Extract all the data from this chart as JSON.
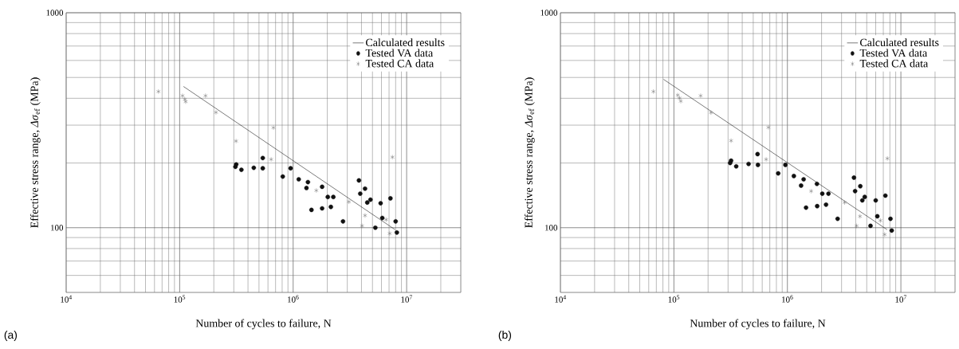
{
  "chart_data": [
    {
      "type": "scatter",
      "annotations": [
        "(a)"
      ],
      "xlabel": "Number of cycles to failure, N",
      "ylabel": "Effective stress range, *Δσ*$_{ef}$ (MPa)",
      "log": "xy",
      "grid": true,
      "legend": "top right",
      "xlim": [
        10000,
        30000000
      ],
      "ylim": [
        50,
        1000
      ],
      "xticks": [
        {
          "value": 10000,
          "label": "10$^{4}$"
        },
        {
          "value": 100000,
          "label": "10$^{5}$"
        },
        {
          "value": 1000000,
          "label": "10$^{6}$"
        },
        {
          "value": 10000000,
          "label": "10$^{7}$"
        }
      ],
      "yticks": [
        100,
        1000
      ],
      "series": [
        {
          "name": "Calculated results",
          "type": "line",
          "marker": "none",
          "color": "#222222",
          "x": [
            108000,
            7900000
          ],
          "values": [
            454,
            98
          ]
        },
        {
          "name": "Tested VA data",
          "marker": "circle",
          "color": "#111111",
          "x": [
            315000,
            310000,
            350000,
            450000,
            540000,
            540000,
            810000,
            950000,
            1120000,
            1350000,
            1310000,
            1450000,
            1800000,
            1800000,
            2020000,
            2260000,
            2150000,
            2750000,
            3800000,
            3900000,
            4300000,
            4500000,
            4800000,
            5300000,
            5900000,
            6100000,
            7200000,
            8000000,
            8200000
          ],
          "values": [
            197,
            192,
            186,
            190,
            211,
            189,
            173,
            189,
            168,
            163,
            153,
            121,
            155,
            123,
            139,
            139,
            125,
            107,
            166,
            144,
            152,
            131,
            135,
            100,
            130,
            111,
            137,
            107,
            95
          ]
        },
        {
          "name": "Tested CA data",
          "marker": "cross",
          "color": "#555555",
          "x": [
            65000,
            106000,
            111000,
            113000,
            169000,
            209000,
            314000,
            670000,
            640000,
            1600000,
            3100000,
            4300000,
            4050000,
            6600000,
            7100000,
            7500000
          ],
          "values": [
            430,
            411,
            396,
            386,
            411,
            344,
            253,
            292,
            208,
            149,
            132,
            114,
            102,
            109,
            94,
            213
          ]
        }
      ]
    },
    {
      "type": "scatter",
      "annotations": [
        "(b)"
      ],
      "xlabel": "Number of cycles to failure, N",
      "ylabel": "Effective stress range, *Δσ*$_{ef}$ (MPa)",
      "log": "xy",
      "grid": true,
      "legend": "top right",
      "xlim": [
        10000,
        30000000
      ],
      "ylim": [
        50,
        1000
      ],
      "xticks": [
        {
          "value": 10000,
          "label": "10$^{4}$"
        },
        {
          "value": 100000,
          "label": "10$^{5}$"
        },
        {
          "value": 1000000,
          "label": "10$^{6}$"
        },
        {
          "value": 10000000,
          "label": "10$^{7}$"
        }
      ],
      "yticks": [
        100,
        1000
      ],
      "series": [
        {
          "name": "Calculated results",
          "type": "line",
          "marker": "none",
          "color": "#222222",
          "x": [
            81000,
            7550000
          ],
          "values": [
            490,
            98
          ]
        },
        {
          "name": "Tested VA data",
          "marker": "circle",
          "color": "#111111",
          "x": [
            319000,
            313000,
            354000,
            455000,
            546000,
            550000,
            830000,
            960000,
            1140000,
            1390000,
            1320000,
            1460000,
            1820000,
            1830000,
            2030000,
            2300000,
            2190000,
            2770000,
            3860000,
            3950000,
            4390000,
            4570000,
            4800000,
            5400000,
            6000000,
            6200000,
            7300000,
            8100000,
            8300000
          ],
          "values": [
            205,
            200,
            193,
            198,
            220,
            196,
            179,
            196,
            174,
            168,
            157,
            124,
            160,
            126,
            144,
            144,
            128,
            110,
            171,
            148,
            156,
            134,
            139,
            102,
            134,
            113,
            141,
            110,
            97
          ]
        },
        {
          "name": "Tested CA data",
          "marker": "cross",
          "color": "#555555",
          "x": [
            66000,
            108000,
            112000,
            115000,
            172000,
            212000,
            319000,
            680000,
            650000,
            1620000,
            3190000,
            4360000,
            4070000,
            6600000,
            7200000,
            7600000
          ],
          "values": [
            430,
            414,
            401,
            388,
            411,
            343,
            254,
            293,
            208,
            148,
            131,
            113,
            102,
            108,
            93,
            210
          ]
        }
      ]
    }
  ]
}
